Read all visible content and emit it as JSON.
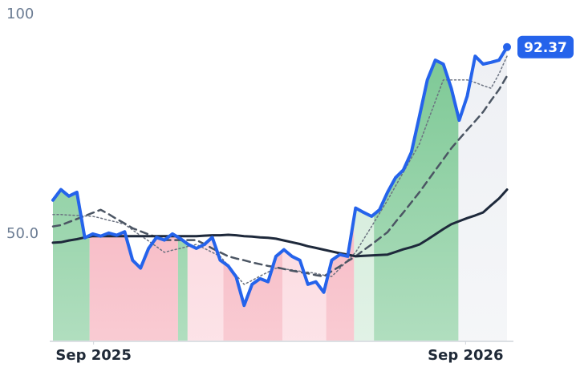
{
  "chart_data": {
    "type": "line",
    "ylim": [
      25.5,
      100
    ],
    "yticks": [
      100,
      {
        "value": 50,
        "label": "50.0"
      }
    ],
    "xlim": [
      0,
      57
    ],
    "xticks": [
      {
        "value": 5.1,
        "label": "Sep 2025"
      },
      {
        "value": 51.8,
        "label": "Sep 2026"
      }
    ],
    "series": [
      {
        "color": "#2563eb",
        "style": "solid",
        "width": 4,
        "values": [
          57.5,
          59.9,
          58.4,
          59.3,
          48.9,
          49.8,
          49.3,
          50.0,
          49.5,
          50.3,
          43.8,
          42.0,
          46.5,
          49.0,
          48.4,
          49.8,
          48.7,
          47.4,
          46.5,
          47.4,
          49.0,
          43.8,
          42.5,
          40.0,
          33.5,
          38.3,
          39.6,
          38.9,
          44.7,
          46.2,
          44.7,
          43.8,
          38.3,
          38.9,
          36.5,
          43.8,
          45.1,
          44.7,
          55.7,
          54.7,
          53.8,
          55.3,
          59.3,
          62.6,
          64.4,
          68.4,
          76.6,
          84.9,
          89.4,
          88.5,
          83.0,
          75.7,
          81.2,
          90.3,
          88.5,
          88.9,
          89.4,
          92.37
        ]
      },
      {
        "color": "#1e293b",
        "style": "solid",
        "width": 3,
        "values": [
          47.8,
          47.9,
          48.3,
          48.6,
          49.0,
          49.3,
          49.3,
          49.3,
          49.3,
          49.3,
          49.3,
          49.3,
          49.3,
          49.3,
          49.3,
          49.3,
          49.3,
          49.3,
          49.3,
          49.4,
          49.5,
          49.5,
          49.6,
          49.5,
          49.3,
          49.2,
          49.0,
          48.9,
          48.7,
          48.3,
          47.9,
          47.5,
          47.0,
          46.6,
          46.2,
          45.8,
          45.4,
          45.1,
          44.7,
          44.8,
          44.9,
          45.0,
          45.1,
          45.7,
          46.3,
          46.8,
          47.4,
          48.5,
          49.7,
          50.9,
          52.0,
          52.7,
          53.4,
          54.0,
          54.7,
          56.3,
          57.9,
          59.9
        ]
      },
      {
        "color": "#4b5563",
        "style": "dashed",
        "width": 2.5,
        "values": [
          51.5,
          51.8,
          52.5,
          53.2,
          53.9,
          54.6,
          55.3,
          54.3,
          53.2,
          52.2,
          51.1,
          50.4,
          49.7,
          49.1,
          48.4,
          48.4,
          48.4,
          48.4,
          48.4,
          47.5,
          46.5,
          45.6,
          44.7,
          44.2,
          43.8,
          43.3,
          42.9,
          42.5,
          42.2,
          41.8,
          41.4,
          41.1,
          40.8,
          40.4,
          40.1,
          41.3,
          42.4,
          43.6,
          44.7,
          46.1,
          47.4,
          48.8,
          50.2,
          52.5,
          54.7,
          57.0,
          59.3,
          61.8,
          64.3,
          66.8,
          69.3,
          71.4,
          73.5,
          75.5,
          77.6,
          80.2,
          82.7,
          85.8
        ]
      },
      {
        "color": "#6b7280",
        "style": "dotted",
        "width": 1.5,
        "values": [
          54.2,
          54.2,
          54.1,
          54.0,
          53.9,
          53.8,
          53.4,
          52.9,
          52.5,
          52.0,
          50.7,
          49.4,
          48.2,
          46.9,
          45.6,
          46.1,
          46.5,
          47.0,
          47.4,
          46.5,
          45.6,
          44.7,
          42.6,
          40.4,
          38.3,
          39.2,
          40.2,
          41.1,
          42.0,
          41.8,
          41.6,
          41.3,
          41.1,
          40.8,
          40.4,
          40.1,
          41.9,
          43.8,
          45.6,
          48.6,
          51.5,
          54.5,
          57.5,
          60.7,
          63.9,
          67.1,
          70.3,
          75.2,
          80.0,
          84.9,
          84.9,
          84.9,
          84.9,
          84.3,
          83.6,
          83.0,
          86.3,
          90.3
        ]
      }
    ],
    "bands": [
      {
        "from": 0,
        "to": 4.6,
        "color": "#7cc894"
      },
      {
        "from": 4.6,
        "to": 15.7,
        "color": "#f5a8b5"
      },
      {
        "from": 15.7,
        "to": 16.9,
        "color": "#7cc894"
      },
      {
        "from": 16.9,
        "to": 21.4,
        "color": "#fbd0d8"
      },
      {
        "from": 21.4,
        "to": 28.8,
        "color": "#f5a8b5"
      },
      {
        "from": 28.8,
        "to": 34.3,
        "color": "#fbd0d8"
      },
      {
        "from": 34.3,
        "to": 37.8,
        "color": "#f5a8b5"
      },
      {
        "from": 37.8,
        "to": 40.3,
        "color": "#cde9d5"
      },
      {
        "from": 40.3,
        "to": 50.9,
        "color": "#7cc894"
      },
      {
        "from": 50.9,
        "to": 57,
        "color": "#eef0f4"
      }
    ]
  }
}
